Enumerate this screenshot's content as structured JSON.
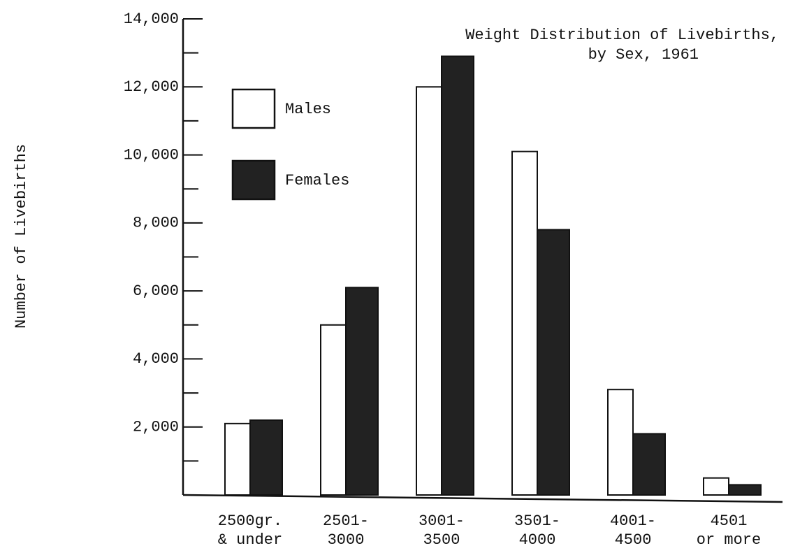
{
  "chart_data": {
    "type": "bar",
    "title": [
      "Weight Distribution of Livebirths,",
      "by Sex, 1961"
    ],
    "y_label": "Number of Livebirths",
    "categories": [
      [
        "2500gr.",
        "& under"
      ],
      [
        "2501-",
        "3000"
      ],
      [
        "3001-",
        "3500"
      ],
      [
        "3501-",
        "4000"
      ],
      [
        "4001-",
        "4500"
      ],
      [
        "4501",
        "or more"
      ]
    ],
    "series": [
      {
        "name": "Males",
        "color": "#ffffff",
        "values": [
          2100,
          5000,
          12000,
          10100,
          3100,
          500
        ]
      },
      {
        "name": "Females",
        "color": "#222222",
        "values": [
          2200,
          6100,
          12900,
          7800,
          1800,
          300
        ]
      }
    ],
    "ylim": [
      0,
      14000
    ],
    "yticks": [
      {
        "value": 2000,
        "label": "2,000"
      },
      {
        "value": 4000,
        "label": "4,000"
      },
      {
        "value": 6000,
        "label": "6,000"
      },
      {
        "value": 8000,
        "label": "8,000"
      },
      {
        "value": 10000,
        "label": "10,000"
      },
      {
        "value": 12000,
        "label": "12,000"
      },
      {
        "value": 14000,
        "label": "14,000"
      }
    ],
    "yminorticks": [
      1000,
      3000,
      5000,
      7000,
      9000,
      11000,
      13000
    ],
    "legend": "upper left"
  }
}
